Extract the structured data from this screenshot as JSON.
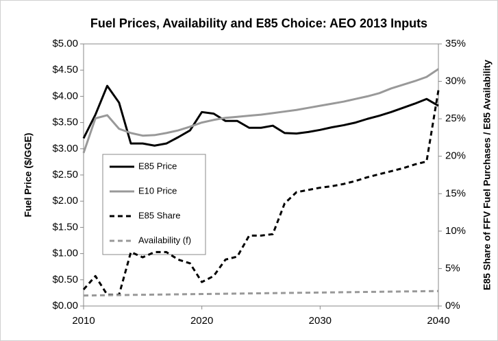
{
  "chart_data": {
    "type": "line",
    "title": "Fuel Prices, Availability and E85 Choice: AEO 2013 Inputs",
    "ylabel": "Fuel Price ($/GGE)",
    "y2label": "E85 Share of FFV Fuel Purchases / E85 Availability",
    "x": [
      2010,
      2011,
      2012,
      2013,
      2014,
      2015,
      2016,
      2017,
      2018,
      2019,
      2020,
      2021,
      2022,
      2023,
      2024,
      2025,
      2026,
      2027,
      2028,
      2029,
      2030,
      2031,
      2032,
      2033,
      2034,
      2035,
      2036,
      2037,
      2038,
      2039,
      2040
    ],
    "xlim": [
      2010,
      2040
    ],
    "xticks": [
      2010,
      2020,
      2030,
      2040
    ],
    "ylim": [
      0,
      5
    ],
    "yticks": [
      {
        "value": 0,
        "label": "$0.00"
      },
      {
        "value": 0.5,
        "label": "$0.50"
      },
      {
        "value": 1,
        "label": "$1.00"
      },
      {
        "value": 1.5,
        "label": "$1.50"
      },
      {
        "value": 2,
        "label": "$2.00"
      },
      {
        "value": 2.5,
        "label": "$2.50"
      },
      {
        "value": 3,
        "label": "$3.00"
      },
      {
        "value": 3.5,
        "label": "$3.50"
      },
      {
        "value": 4,
        "label": "$4.00"
      },
      {
        "value": 4.5,
        "label": "$4.50"
      },
      {
        "value": 5,
        "label": "$5.00"
      }
    ],
    "y2lim": [
      0,
      35
    ],
    "y2ticks": [
      {
        "value": 0,
        "label": "0%"
      },
      {
        "value": 5,
        "label": "5%"
      },
      {
        "value": 10,
        "label": "10%"
      },
      {
        "value": 15,
        "label": "15%"
      },
      {
        "value": 20,
        "label": "20%"
      },
      {
        "value": 25,
        "label": "25%"
      },
      {
        "value": 30,
        "label": "30%"
      },
      {
        "value": 35,
        "label": "35%"
      }
    ],
    "series": [
      {
        "name": "E85 Price",
        "color": "#000000",
        "dashed": false,
        "values": [
          3.2,
          3.65,
          4.2,
          3.88,
          3.1,
          3.1,
          3.06,
          3.1,
          3.22,
          3.35,
          3.7,
          3.67,
          3.53,
          3.53,
          3.4,
          3.4,
          3.44,
          3.3,
          3.29,
          3.32,
          3.36,
          3.41,
          3.45,
          3.5,
          3.57,
          3.63,
          3.7,
          3.78,
          3.86,
          3.95,
          3.82
        ]
      },
      {
        "name": "E10 Price",
        "color": "#999999",
        "dashed": false,
        "values": [
          2.92,
          3.58,
          3.64,
          3.38,
          3.3,
          3.25,
          3.26,
          3.3,
          3.35,
          3.42,
          3.5,
          3.55,
          3.59,
          3.61,
          3.63,
          3.65,
          3.68,
          3.71,
          3.74,
          3.78,
          3.82,
          3.86,
          3.9,
          3.95,
          4.0,
          4.06,
          4.15,
          4.22,
          4.29,
          4.37,
          4.52
        ]
      },
      {
        "name": "E85 Share",
        "color": "#000000",
        "dashed": true,
        "axis": "y2",
        "values": [
          2.2,
          4,
          1.5,
          1.5,
          7.2,
          6.5,
          7.2,
          7.2,
          6.2,
          5.7,
          3.2,
          4,
          6.2,
          6.6,
          9.4,
          9.4,
          9.6,
          13.7,
          15.2,
          15.5,
          15.8,
          16,
          16.3,
          16.7,
          17.2,
          17.6,
          18,
          18.4,
          18.9,
          19.3,
          28.8
        ]
      },
      {
        "name": "Availability (f)",
        "color": "#999999",
        "dashed": true,
        "axis": "y2",
        "values": [
          1.4,
          1.42,
          1.44,
          1.46,
          1.48,
          1.5,
          1.52,
          1.54,
          1.56,
          1.58,
          1.6,
          1.62,
          1.64,
          1.66,
          1.68,
          1.7,
          1.72,
          1.74,
          1.76,
          1.78,
          1.8,
          1.82,
          1.84,
          1.86,
          1.88,
          1.9,
          1.92,
          1.94,
          1.96,
          1.98,
          2.0
        ]
      }
    ]
  }
}
